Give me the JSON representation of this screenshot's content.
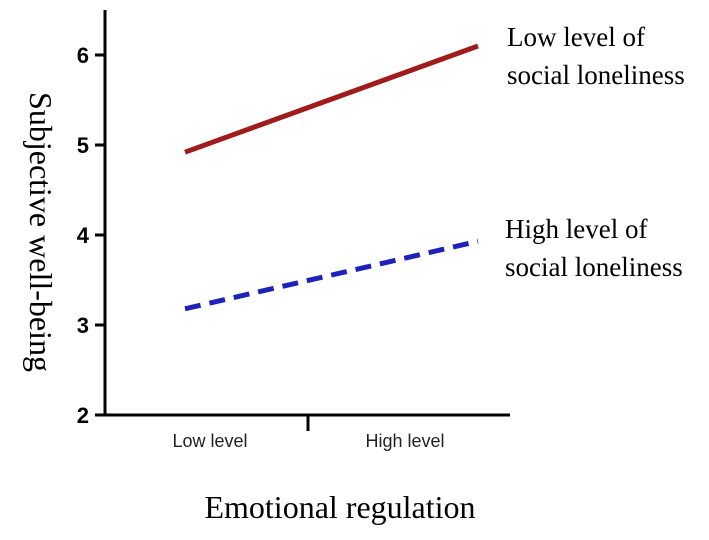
{
  "chart_data": {
    "type": "line",
    "title": "",
    "xlabel": "Emotional regulation",
    "ylabel": "Subjective well-being",
    "categories": [
      "Low level",
      "High level"
    ],
    "ylim": [
      2,
      6.5
    ],
    "yticks": [
      2,
      3,
      4,
      5,
      6
    ],
    "grid": false,
    "series": [
      {
        "name_lines": [
          "Low level of",
          "social loneliness"
        ],
        "values": [
          4.92,
          6.1
        ],
        "color": "#a01c1c",
        "dashed": false
      },
      {
        "name_lines": [
          "High level of",
          "social loneliness"
        ],
        "values": [
          3.18,
          3.93
        ],
        "color": "#1f22b8",
        "dashed": true
      }
    ]
  }
}
